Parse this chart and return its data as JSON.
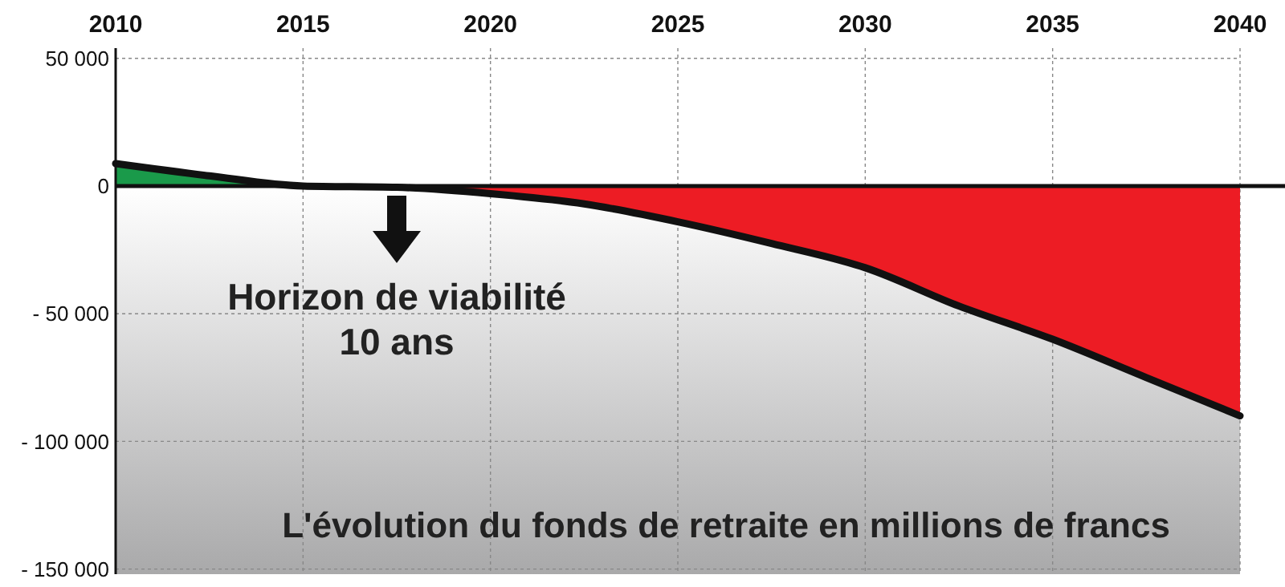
{
  "chart_data": {
    "type": "area",
    "title": "L'évolution du fonds de retraite en millions de francs",
    "xlim": [
      2010,
      2040
    ],
    "xticks": [
      2010,
      2015,
      2020,
      2025,
      2030,
      2035,
      2040
    ],
    "ylim": [
      -152000,
      54000
    ],
    "yticks": [
      {
        "value": 50000,
        "label": "50 000"
      },
      0,
      {
        "value": -50000,
        "label": "- 50 000"
      },
      {
        "value": -100000,
        "label": "- 100 000"
      },
      {
        "value": -150000,
        "label": "- 150 000"
      }
    ],
    "grid": true,
    "bands": [
      {
        "axis": "y",
        "from": -152000,
        "to": 0,
        "color": "#a9a9aa"
      }
    ],
    "series": [
      {
        "color": "#1a9a4a",
        "x": [
          2010,
          2012.5,
          2015
        ],
        "values": [
          8800,
          4000,
          0
        ]
      },
      {
        "color": "#ed1c24",
        "x": [
          2017.5,
          2020,
          2022.5,
          2025,
          2027.5,
          2030,
          2032.5,
          2035,
          2037.5,
          2040
        ],
        "values": [
          -500,
          -3000,
          -7000,
          -14000,
          -22500,
          -32000,
          -47000,
          -60000,
          -75000,
          -90000
        ]
      },
      {
        "type": "line",
        "color": "#111111",
        "x": [
          2010,
          2012.5,
          2015,
          2017.5,
          2020,
          2022.5,
          2025,
          2027.5,
          2030,
          2032.5,
          2035,
          2037.5,
          2040
        ],
        "values": [
          8800,
          4000,
          0,
          -500,
          -3000,
          -7000,
          -14000,
          -22500,
          -32000,
          -47000,
          -60000,
          -75000,
          -90000
        ]
      }
    ],
    "annotations": [
      {
        "text": "Horizon de viabilité\n10 ans",
        "x": 2017.5,
        "y": 0
      }
    ]
  }
}
